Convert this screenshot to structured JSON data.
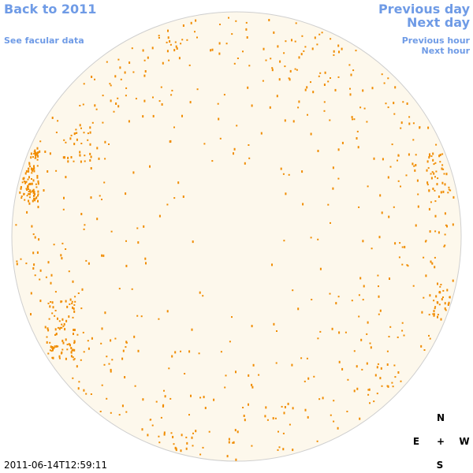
{
  "links": {
    "back_to_year": "Back to 2011",
    "see_facular_data": "See facular data",
    "previous_day": "Previous day",
    "next_day": "Next day",
    "previous_hour": "Previous hour",
    "next_hour": "Next hour"
  },
  "compass": {
    "north": "N",
    "east": "E",
    "center": "+",
    "west": "W",
    "south": "S"
  },
  "timestamp": "2011-06-14T12:59:11"
}
